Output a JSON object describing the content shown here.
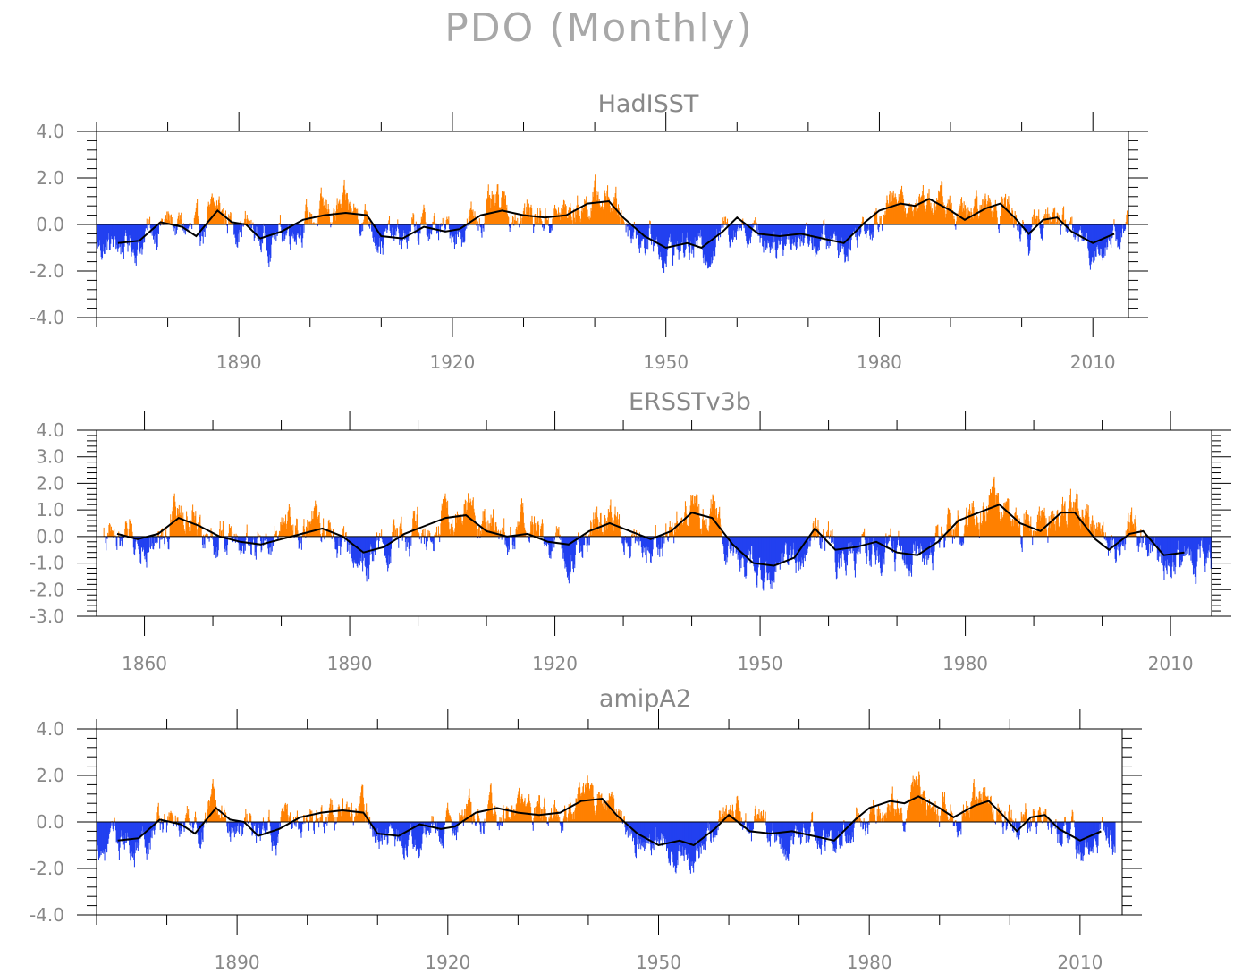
{
  "title": "PDO (Monthly)",
  "colors": {
    "positive": "#ff8000",
    "negative": "#2240f0",
    "smooth": "#000000",
    "axis": "#000000",
    "text": "#888888"
  },
  "chart_data": [
    {
      "type": "bar",
      "title": "HadISST",
      "xlim": [
        1870,
        2015
      ],
      "ylim": [
        -4.0,
        4.0
      ],
      "yticks": [
        "4.0",
        "2.0",
        "0.0",
        "-2.0",
        "-4.0"
      ],
      "ytick_values": [
        4,
        2,
        0,
        -2,
        -4
      ],
      "xticks": [
        "1890",
        "1920",
        "1950",
        "1980",
        "2010"
      ],
      "xtick_values": [
        1890,
        1920,
        1950,
        1980,
        2010
      ],
      "start_year": 1870,
      "end_year": 2015,
      "legend": "none",
      "smooth": [
        {
          "x": 1873,
          "y": -0.8
        },
        {
          "x": 1876,
          "y": -0.7
        },
        {
          "x": 1879,
          "y": 0.1
        },
        {
          "x": 1882,
          "y": -0.1
        },
        {
          "x": 1884,
          "y": -0.5
        },
        {
          "x": 1887,
          "y": 0.6
        },
        {
          "x": 1889,
          "y": 0.1
        },
        {
          "x": 1891,
          "y": 0.0
        },
        {
          "x": 1893,
          "y": -0.6
        },
        {
          "x": 1896,
          "y": -0.3
        },
        {
          "x": 1899,
          "y": 0.2
        },
        {
          "x": 1902,
          "y": 0.4
        },
        {
          "x": 1905,
          "y": 0.5
        },
        {
          "x": 1908,
          "y": 0.4
        },
        {
          "x": 1910,
          "y": -0.5
        },
        {
          "x": 1913,
          "y": -0.6
        },
        {
          "x": 1916,
          "y": -0.1
        },
        {
          "x": 1919,
          "y": -0.3
        },
        {
          "x": 1921,
          "y": -0.2
        },
        {
          "x": 1924,
          "y": 0.4
        },
        {
          "x": 1927,
          "y": 0.6
        },
        {
          "x": 1930,
          "y": 0.4
        },
        {
          "x": 1933,
          "y": 0.3
        },
        {
          "x": 1936,
          "y": 0.4
        },
        {
          "x": 1939,
          "y": 0.9
        },
        {
          "x": 1942,
          "y": 1.0
        },
        {
          "x": 1944,
          "y": 0.3
        },
        {
          "x": 1947,
          "y": -0.5
        },
        {
          "x": 1950,
          "y": -1.0
        },
        {
          "x": 1953,
          "y": -0.8
        },
        {
          "x": 1955,
          "y": -1.0
        },
        {
          "x": 1958,
          "y": -0.3
        },
        {
          "x": 1960,
          "y": 0.3
        },
        {
          "x": 1963,
          "y": -0.4
        },
        {
          "x": 1966,
          "y": -0.5
        },
        {
          "x": 1969,
          "y": -0.4
        },
        {
          "x": 1972,
          "y": -0.6
        },
        {
          "x": 1975,
          "y": -0.8
        },
        {
          "x": 1978,
          "y": 0.1
        },
        {
          "x": 1980,
          "y": 0.6
        },
        {
          "x": 1983,
          "y": 0.9
        },
        {
          "x": 1985,
          "y": 0.8
        },
        {
          "x": 1987,
          "y": 1.1
        },
        {
          "x": 1990,
          "y": 0.6
        },
        {
          "x": 1992,
          "y": 0.2
        },
        {
          "x": 1995,
          "y": 0.7
        },
        {
          "x": 1997,
          "y": 0.9
        },
        {
          "x": 1999,
          "y": 0.3
        },
        {
          "x": 2001,
          "y": -0.4
        },
        {
          "x": 2003,
          "y": 0.2
        },
        {
          "x": 2005,
          "y": 0.3
        },
        {
          "x": 2007,
          "y": -0.3
        },
        {
          "x": 2010,
          "y": -0.8
        },
        {
          "x": 2013,
          "y": -0.4
        }
      ]
    },
    {
      "type": "bar",
      "title": "ERSSTv3b",
      "xlim": [
        1853,
        2016
      ],
      "ylim": [
        -3.0,
        4.0
      ],
      "yticks": [
        "4.0",
        "3.0",
        "2.0",
        "1.0",
        "0.0",
        "-1.0",
        "-2.0",
        "-3.0"
      ],
      "ytick_values": [
        4,
        3,
        2,
        1,
        0,
        -1,
        -2,
        -3
      ],
      "xticks": [
        "1860",
        "1890",
        "1920",
        "1950",
        "1980",
        "2010"
      ],
      "xtick_values": [
        1860,
        1890,
        1920,
        1950,
        1980,
        2010
      ],
      "start_year": 1854,
      "end_year": 2016,
      "legend": "none",
      "smooth": [
        {
          "x": 1856,
          "y": 0.1
        },
        {
          "x": 1859,
          "y": -0.1
        },
        {
          "x": 1862,
          "y": 0.1
        },
        {
          "x": 1865,
          "y": 0.7
        },
        {
          "x": 1868,
          "y": 0.4
        },
        {
          "x": 1871,
          "y": 0.0
        },
        {
          "x": 1874,
          "y": -0.2
        },
        {
          "x": 1877,
          "y": -0.3
        },
        {
          "x": 1880,
          "y": -0.1
        },
        {
          "x": 1883,
          "y": 0.1
        },
        {
          "x": 1886,
          "y": 0.3
        },
        {
          "x": 1889,
          "y": 0.0
        },
        {
          "x": 1892,
          "y": -0.6
        },
        {
          "x": 1895,
          "y": -0.4
        },
        {
          "x": 1898,
          "y": 0.1
        },
        {
          "x": 1901,
          "y": 0.4
        },
        {
          "x": 1904,
          "y": 0.7
        },
        {
          "x": 1907,
          "y": 0.8
        },
        {
          "x": 1910,
          "y": 0.2
        },
        {
          "x": 1913,
          "y": 0.0
        },
        {
          "x": 1916,
          "y": 0.1
        },
        {
          "x": 1919,
          "y": -0.2
        },
        {
          "x": 1922,
          "y": -0.3
        },
        {
          "x": 1925,
          "y": 0.2
        },
        {
          "x": 1928,
          "y": 0.5
        },
        {
          "x": 1931,
          "y": 0.2
        },
        {
          "x": 1934,
          "y": -0.1
        },
        {
          "x": 1937,
          "y": 0.2
        },
        {
          "x": 1940,
          "y": 0.9
        },
        {
          "x": 1943,
          "y": 0.7
        },
        {
          "x": 1946,
          "y": -0.3
        },
        {
          "x": 1949,
          "y": -1.0
        },
        {
          "x": 1952,
          "y": -1.1
        },
        {
          "x": 1955,
          "y": -0.8
        },
        {
          "x": 1958,
          "y": 0.3
        },
        {
          "x": 1961,
          "y": -0.5
        },
        {
          "x": 1964,
          "y": -0.4
        },
        {
          "x": 1967,
          "y": -0.2
        },
        {
          "x": 1970,
          "y": -0.6
        },
        {
          "x": 1973,
          "y": -0.7
        },
        {
          "x": 1976,
          "y": -0.2
        },
        {
          "x": 1979,
          "y": 0.6
        },
        {
          "x": 1982,
          "y": 0.9
        },
        {
          "x": 1985,
          "y": 1.2
        },
        {
          "x": 1988,
          "y": 0.5
        },
        {
          "x": 1991,
          "y": 0.2
        },
        {
          "x": 1994,
          "y": 0.9
        },
        {
          "x": 1996,
          "y": 0.9
        },
        {
          "x": 1999,
          "y": -0.1
        },
        {
          "x": 2001,
          "y": -0.5
        },
        {
          "x": 2004,
          "y": 0.1
        },
        {
          "x": 2006,
          "y": 0.2
        },
        {
          "x": 2009,
          "y": -0.7
        },
        {
          "x": 2012,
          "y": -0.6
        }
      ]
    },
    {
      "type": "bar",
      "title": "amipA2",
      "xlim": [
        1870,
        2016
      ],
      "ylim": [
        -4.0,
        4.0
      ],
      "yticks": [
        "4.0",
        "2.0",
        "0.0",
        "-2.0",
        "-4.0"
      ],
      "ytick_values": [
        4,
        2,
        0,
        -2,
        -4
      ],
      "xticks": [
        "1890",
        "1920",
        "1950",
        "1980",
        "2010"
      ],
      "xtick_values": [
        1890,
        1920,
        1950,
        1980,
        2010
      ],
      "start_year": 1870,
      "end_year": 2015,
      "legend": "none",
      "smooth": [
        {
          "x": 1873,
          "y": -0.8
        },
        {
          "x": 1876,
          "y": -0.7
        },
        {
          "x": 1879,
          "y": 0.1
        },
        {
          "x": 1882,
          "y": -0.1
        },
        {
          "x": 1884,
          "y": -0.5
        },
        {
          "x": 1887,
          "y": 0.6
        },
        {
          "x": 1889,
          "y": 0.1
        },
        {
          "x": 1891,
          "y": 0.0
        },
        {
          "x": 1893,
          "y": -0.6
        },
        {
          "x": 1896,
          "y": -0.3
        },
        {
          "x": 1899,
          "y": 0.2
        },
        {
          "x": 1902,
          "y": 0.4
        },
        {
          "x": 1905,
          "y": 0.5
        },
        {
          "x": 1908,
          "y": 0.4
        },
        {
          "x": 1910,
          "y": -0.5
        },
        {
          "x": 1913,
          "y": -0.6
        },
        {
          "x": 1916,
          "y": -0.1
        },
        {
          "x": 1919,
          "y": -0.3
        },
        {
          "x": 1921,
          "y": -0.2
        },
        {
          "x": 1924,
          "y": 0.4
        },
        {
          "x": 1927,
          "y": 0.6
        },
        {
          "x": 1930,
          "y": 0.4
        },
        {
          "x": 1933,
          "y": 0.3
        },
        {
          "x": 1936,
          "y": 0.4
        },
        {
          "x": 1939,
          "y": 0.9
        },
        {
          "x": 1942,
          "y": 1.0
        },
        {
          "x": 1944,
          "y": 0.3
        },
        {
          "x": 1947,
          "y": -0.5
        },
        {
          "x": 1950,
          "y": -1.0
        },
        {
          "x": 1953,
          "y": -0.8
        },
        {
          "x": 1955,
          "y": -1.0
        },
        {
          "x": 1958,
          "y": -0.3
        },
        {
          "x": 1960,
          "y": 0.3
        },
        {
          "x": 1963,
          "y": -0.4
        },
        {
          "x": 1966,
          "y": -0.5
        },
        {
          "x": 1969,
          "y": -0.4
        },
        {
          "x": 1972,
          "y": -0.6
        },
        {
          "x": 1975,
          "y": -0.8
        },
        {
          "x": 1978,
          "y": 0.1
        },
        {
          "x": 1980,
          "y": 0.6
        },
        {
          "x": 1983,
          "y": 0.9
        },
        {
          "x": 1985,
          "y": 0.8
        },
        {
          "x": 1987,
          "y": 1.1
        },
        {
          "x": 1990,
          "y": 0.6
        },
        {
          "x": 1992,
          "y": 0.2
        },
        {
          "x": 1995,
          "y": 0.7
        },
        {
          "x": 1997,
          "y": 0.9
        },
        {
          "x": 1999,
          "y": 0.3
        },
        {
          "x": 2001,
          "y": -0.4
        },
        {
          "x": 2003,
          "y": 0.2
        },
        {
          "x": 2005,
          "y": 0.3
        },
        {
          "x": 2007,
          "y": -0.3
        },
        {
          "x": 2010,
          "y": -0.8
        },
        {
          "x": 2013,
          "y": -0.4
        }
      ]
    }
  ]
}
